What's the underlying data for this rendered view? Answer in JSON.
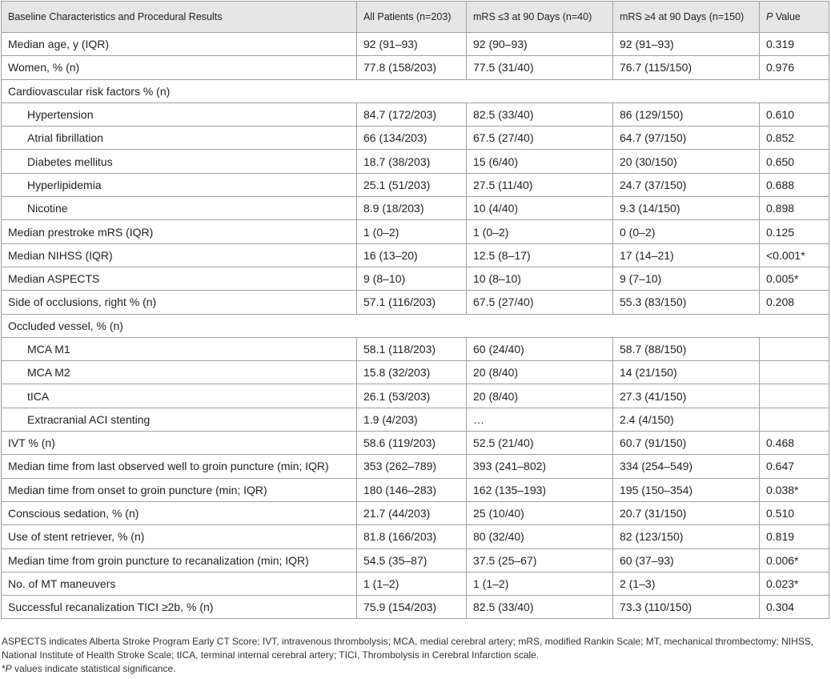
{
  "table": {
    "header": [
      [
        "Baseline Characteristics and Procedural Results"
      ],
      [
        "All Patients (n=203)"
      ],
      [
        "mRS ≤3 at 90 Days (n=40)"
      ],
      [
        "mRS ≥4 at 90 Days (n=150)"
      ],
      [
        "P",
        " Value"
      ]
    ],
    "rows": [
      [
        "Median age, y (IQR)",
        "92 (91–93)",
        "92 (90–93)",
        "92 (91–93)",
        "0.319"
      ],
      [
        "Women, % (n)",
        "77.8 (158/203)",
        "77.5 (31/40)",
        "76.7 (115/150)",
        "0.976"
      ],
      {
        "section": "Cardiovascular risk factors % (n)",
        "rows": [
          [
            "Hypertension",
            "84.7 (172/203)",
            "82.5 (33/40)",
            "86 (129/150)",
            "0.610"
          ],
          [
            "Atrial fibrillation",
            "66 (134/203)",
            "67.5 (27/40)",
            "64.7 (97/150)",
            "0.852"
          ],
          [
            "Diabetes mellitus",
            "18.7 (38/203)",
            "15 (6/40)",
            "20 (30/150)",
            "0.650"
          ],
          [
            "Hyperlipidemia",
            "25.1 (51/203)",
            "27.5 (11/40)",
            "24.7 (37/150)",
            "0.688"
          ],
          [
            "Nicotine",
            "8.9 (18/203)",
            "10 (4/40)",
            "9.3 (14/150)",
            "0.898"
          ]
        ]
      },
      [
        "Median prestroke mRS (IQR)",
        "1 (0–2)",
        "1 (0–2)",
        "0 (0–2)",
        "0.125"
      ],
      [
        "Median NIHSS (IQR)",
        "16 (13–20)",
        "12.5 (8–17)",
        "17 (14–21)",
        "<0.001*"
      ],
      [
        "Median ASPECTS",
        "9 (8–10)",
        "10 (8–10)",
        "9 (7–10)",
        "0.005*"
      ],
      [
        "Side of occlusions, right % (n)",
        "57.1 (116/203)",
        "67.5 (27/40)",
        "55.3 (83/150)",
        "0.208"
      ],
      {
        "section": "Occluded vessel, % (n)",
        "rows": [
          [
            "MCA M1",
            "58.1 (118/203)",
            "60 (24/40)",
            "58.7 (88/150)"
          ],
          [
            "MCA M2",
            "15.8 (32/203)",
            "20 (8/40)",
            "14 (21/150)"
          ],
          [
            "tICA",
            "26.1 (53/203)",
            "20 (8/40)",
            "27.3 (41/150)"
          ],
          [
            "Extracranial ACI stenting",
            "1.9 (4/203)",
            "…",
            "2.4 (4/150)"
          ]
        ]
      },
      [
        "IVT % (n)",
        "58.6 (119/203)",
        "52.5 (21/40)",
        "60.7 (91/150)",
        "0.468"
      ],
      [
        "Median time from last observed well to groin puncture (min; IQR)",
        "353 (262–789)",
        "393 (241–802)",
        "334 (254–549)",
        "0.647"
      ],
      [
        "Median time from onset to groin puncture (min; IQR)",
        "180 (146–283)",
        "162 (135–193)",
        "195 (150–354)",
        "0.038*"
      ],
      [
        "Conscious sedation, % (n)",
        "21.7 (44/203)",
        "25 (10/40)",
        "20.7 (31/150)",
        "0.510"
      ],
      [
        "Use of stent retriever, % (n)",
        "81.8 (166/203)",
        "80 (32/40)",
        "82 (123/150)",
        "0.819"
      ],
      [
        "Median time from groin puncture to recanalization (min; IQR)",
        "54.5 (35–87)",
        "37.5 (25–67)",
        "60 (37–93)",
        "0.006*"
      ],
      [
        "No. of MT maneuvers",
        "1 (1–2)",
        "1 (1–2)",
        "2 (1–3)",
        "0.023*"
      ],
      [
        "Successful recanalization TICI ≥2b, % (n)",
        "75.9 (154/203)",
        "82.5 (33/40)",
        "73.3 (110/150)",
        "0.304"
      ]
    ]
  },
  "footnotes": [
    [
      "ASPECTS indicates Alberta Stroke Program Early CT Score; IVT, intravenous thrombolysis; MCA, medial cerebral artery; mRS, modified Rankin Scale; MT, mechanical thrombectomy; NIHSS, National Institute of Health Stroke Scale; tICA, terminal internal cerebral artery; TICI, Thrombolysis in Cerebral Infarction scale."
    ],
    [
      "*",
      "P",
      " values indicate statistical significance."
    ]
  ]
}
